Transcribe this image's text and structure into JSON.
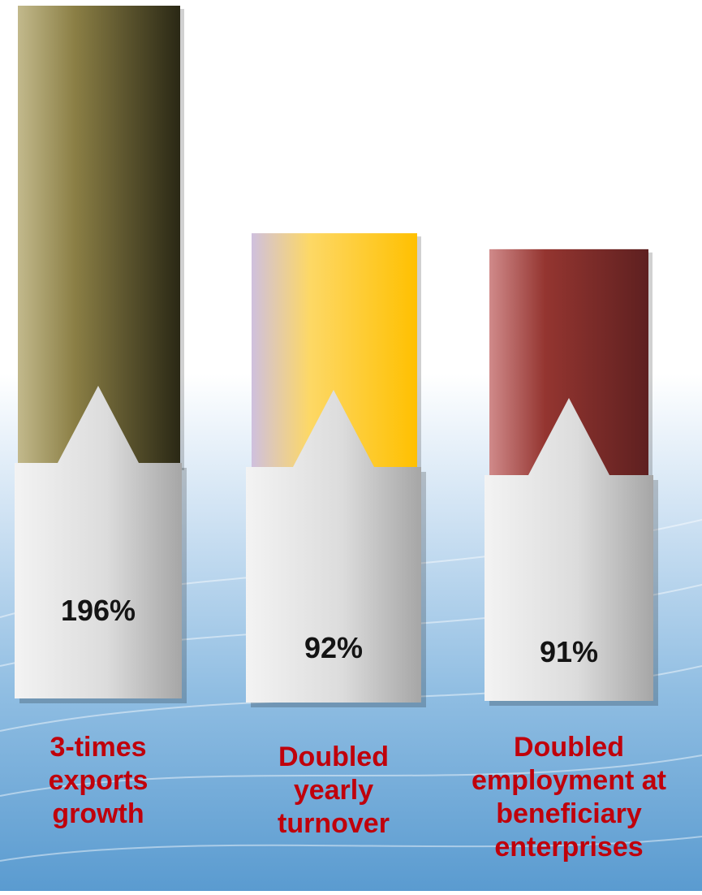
{
  "chart_data": {
    "type": "bar",
    "categories": [
      "3-times exports growth",
      "Doubled yearly turnover",
      "Doubled employment at beneficiary enterprises"
    ],
    "values": [
      196,
      92,
      91
    ],
    "value_labels": [
      "196%",
      "92%",
      "91%"
    ],
    "label_lines": [
      [
        "3-times",
        "exports",
        "growth"
      ],
      [
        "Doubled",
        "yearly",
        "turnover"
      ],
      [
        "Doubled",
        "employment at",
        "beneficiary",
        "enterprises"
      ]
    ],
    "colors": {
      "bar1": [
        "#c2b98c",
        "#8b7f45",
        "#2a2815"
      ],
      "bar2": [
        "#cfc0de",
        "#fdd866",
        "#ffc000"
      ],
      "bar3": [
        "#d08a8a",
        "#943530",
        "#5e2020"
      ],
      "callout": [
        "#f2f2f2",
        "#a8a8a8"
      ],
      "label": "#c0000b"
    },
    "title": "",
    "xlabel": "",
    "ylabel": "",
    "ylim": [
      0,
      196
    ],
    "legend": "none",
    "grid": false
  }
}
